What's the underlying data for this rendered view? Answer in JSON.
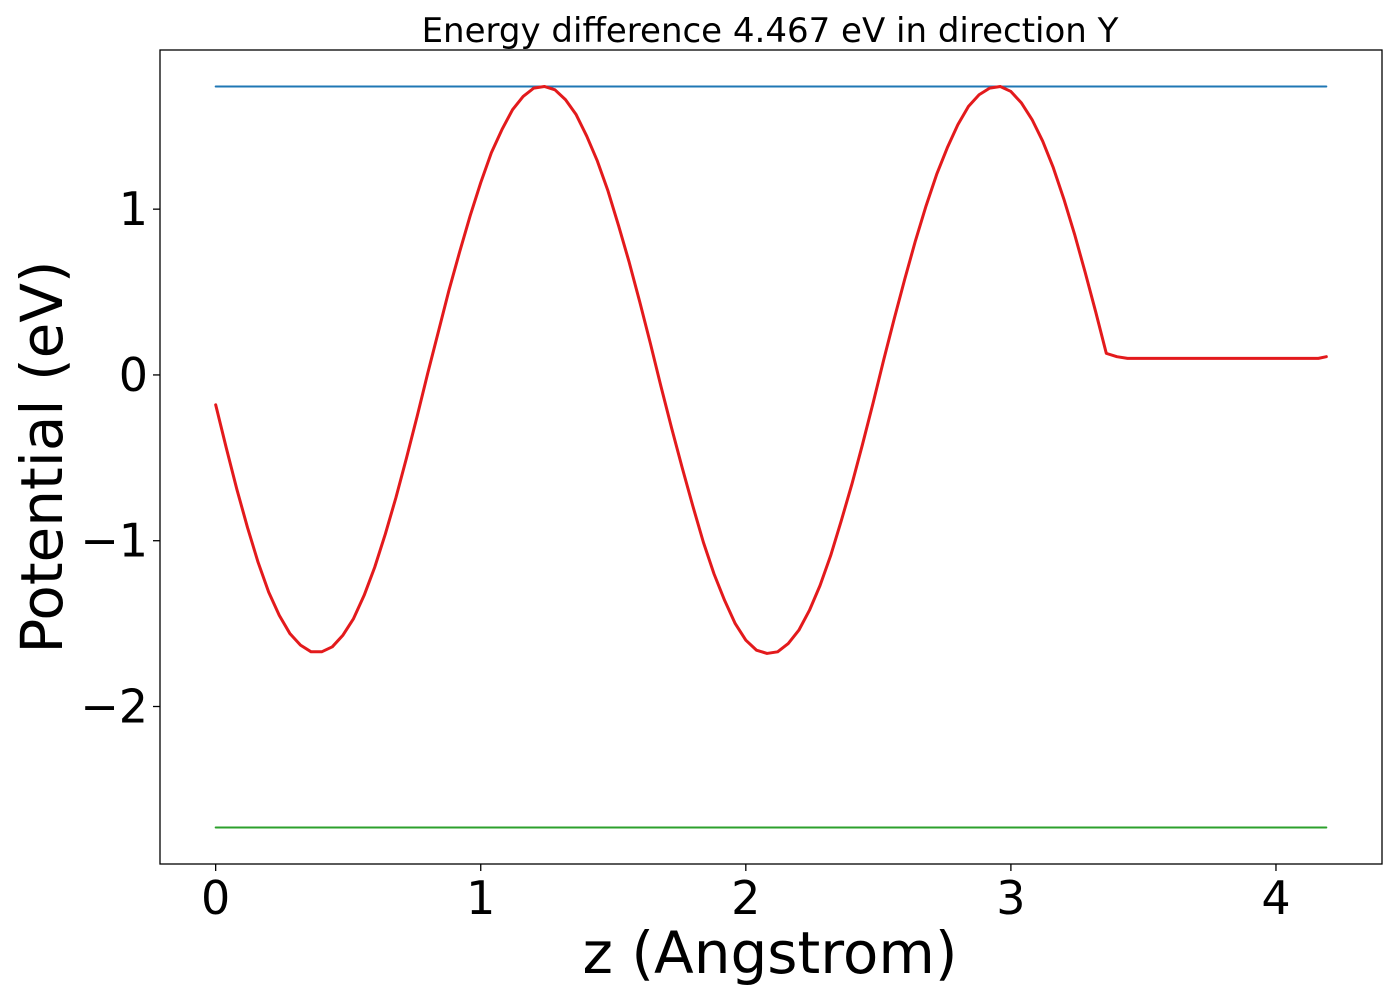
{
  "chart_data": {
    "type": "line",
    "title": "Energy difference 4.467 eV in direction Y",
    "xlabel": "z (Angstrom)",
    "ylabel": "Potential (eV)",
    "xlim": [
      -0.21,
      4.4
    ],
    "ylim": [
      -2.95,
      1.96
    ],
    "xticks": [
      {
        "value": 0,
        "label": "0"
      },
      {
        "value": 1,
        "label": "1"
      },
      {
        "value": 2,
        "label": "2"
      },
      {
        "value": 3,
        "label": "3"
      },
      {
        "value": 4,
        "label": "4"
      }
    ],
    "yticks": [
      {
        "value": -2,
        "label": "−2"
      },
      {
        "value": -1,
        "label": "−1"
      },
      {
        "value": 0,
        "label": "0"
      },
      {
        "value": 1,
        "label": "1"
      }
    ],
    "grid": false,
    "legend": "none",
    "series": [
      {
        "color": "#1f77b4",
        "x": [
          0,
          4.19
        ],
        "y": [
          1.74,
          1.74
        ]
      },
      {
        "color": "#2ca02c",
        "x": [
          0,
          4.19
        ],
        "y": [
          -2.73,
          -2.73
        ]
      },
      {
        "color": "#e31a1c",
        "x": [
          0,
          0.04,
          0.08,
          0.12,
          0.16,
          0.2,
          0.24,
          0.28,
          0.32,
          0.36,
          0.4,
          0.44,
          0.48,
          0.52,
          0.56,
          0.6,
          0.64,
          0.68,
          0.72,
          0.76,
          0.8,
          0.84,
          0.88,
          0.92,
          0.96,
          1.0,
          1.04,
          1.08,
          1.12,
          1.16,
          1.2,
          1.24,
          1.28,
          1.32,
          1.36,
          1.4,
          1.44,
          1.48,
          1.52,
          1.56,
          1.6,
          1.64,
          1.68,
          1.72,
          1.76,
          1.8,
          1.84,
          1.88,
          1.92,
          1.96,
          2.0,
          2.04,
          2.08,
          2.12,
          2.16,
          2.2,
          2.24,
          2.28,
          2.32,
          2.36,
          2.4,
          2.44,
          2.48,
          2.52,
          2.56,
          2.6,
          2.64,
          2.68,
          2.72,
          2.76,
          2.8,
          2.84,
          2.88,
          2.92,
          2.96,
          3.0,
          3.04,
          3.08,
          3.12,
          3.16,
          3.2,
          3.24,
          3.28,
          3.32,
          3.36,
          3.4,
          3.44,
          3.48,
          3.52,
          3.56,
          3.6,
          3.64,
          3.68,
          3.72,
          3.76,
          3.8,
          3.84,
          3.88,
          3.92,
          3.96,
          4.0,
          4.04,
          4.08,
          4.12,
          4.16,
          4.19
        ],
        "y": [
          -0.18,
          -0.44,
          -0.69,
          -0.92,
          -1.13,
          -1.31,
          -1.45,
          -1.56,
          -1.63,
          -1.67,
          -1.67,
          -1.64,
          -1.57,
          -1.47,
          -1.33,
          -1.16,
          -0.96,
          -0.74,
          -0.5,
          -0.25,
          0.01,
          0.26,
          0.51,
          0.74,
          0.96,
          1.16,
          1.34,
          1.48,
          1.6,
          1.68,
          1.73,
          1.74,
          1.72,
          1.66,
          1.57,
          1.44,
          1.29,
          1.11,
          0.9,
          0.68,
          0.44,
          0.19,
          -0.07,
          -0.32,
          -0.56,
          -0.79,
          -1.01,
          -1.2,
          -1.36,
          -1.5,
          -1.6,
          -1.66,
          -1.68,
          -1.67,
          -1.62,
          -1.54,
          -1.42,
          -1.27,
          -1.09,
          -0.88,
          -0.66,
          -0.42,
          -0.17,
          0.09,
          0.34,
          0.58,
          0.81,
          1.02,
          1.21,
          1.37,
          1.51,
          1.62,
          1.69,
          1.73,
          1.74,
          1.71,
          1.64,
          1.54,
          1.41,
          1.25,
          1.06,
          0.85,
          0.62,
          0.38,
          0.13,
          0.11,
          0.1,
          0.1,
          0.1,
          0.1,
          0.1,
          0.1,
          0.1,
          0.1,
          0.1,
          0.1,
          0.1,
          0.1,
          0.1,
          0.1,
          0.1,
          0.1,
          0.1,
          0.1,
          0.1,
          0.11
        ]
      }
    ]
  }
}
